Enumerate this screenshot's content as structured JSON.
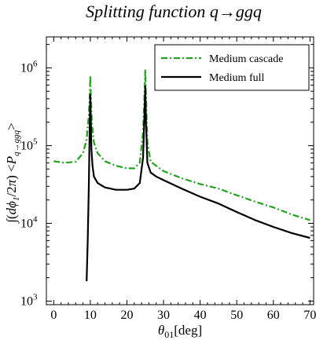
{
  "chart_data": {
    "type": "line",
    "title": "Splitting function q→ggq",
    "xlabel": "θ01[deg]",
    "ylabel": "∫(dϕ1/2π) <Pq→ggq>",
    "xlim": [
      -2,
      71
    ],
    "ylim": [
      900,
      2500000
    ],
    "yscale": "log",
    "x_ticks": [
      0,
      10,
      20,
      30,
      40,
      50,
      60,
      70
    ],
    "x_tick_labels": [
      "0",
      "10",
      "20",
      "30",
      "40",
      "50",
      "60",
      "70"
    ],
    "y_ticks": [
      1000,
      10000,
      100000,
      1000000
    ],
    "y_tick_labels": [
      {
        "base": "10",
        "exp": "3"
      },
      {
        "base": "10",
        "exp": "4"
      },
      {
        "base": "10",
        "exp": "5"
      },
      {
        "base": "10",
        "exp": "6"
      }
    ],
    "grid": false,
    "legend_position": "top-right",
    "series": [
      {
        "name": "Medium cascade",
        "color": "#22a31e",
        "style": "dash-dot",
        "x": [
          0,
          3,
          6,
          8,
          9,
          9.6,
          9.9,
          10,
          10.1,
          10.4,
          11,
          12,
          14,
          17,
          20,
          22,
          23.5,
          24.4,
          24.8,
          25,
          25.2,
          25.6,
          26.5,
          28,
          30,
          35,
          40,
          45,
          50,
          55,
          60,
          65,
          70
        ],
        "y": [
          63000,
          60000,
          62000,
          80000,
          120000,
          250000,
          500000,
          800000,
          500000,
          200000,
          110000,
          80000,
          63000,
          55000,
          51000,
          51000,
          60000,
          150000,
          450000,
          950000,
          450000,
          110000,
          62000,
          55000,
          47000,
          38000,
          32000,
          28000,
          23000,
          19000,
          16000,
          13000,
          11000
        ]
      },
      {
        "name": "Medium full",
        "color": "#000000",
        "style": "solid",
        "x": [
          9.0,
          9.3,
          9.6,
          9.8,
          9.95,
          10.0,
          10.1,
          10.3,
          10.6,
          11,
          12,
          14,
          17,
          20,
          22,
          23.5,
          24.4,
          24.8,
          25,
          25.2,
          25.6,
          26.5,
          28,
          30,
          35,
          40,
          45,
          50,
          55,
          60,
          65,
          70
        ],
        "y": [
          1800,
          6000,
          30000,
          150000,
          350000,
          450000,
          250000,
          90000,
          55000,
          40000,
          33000,
          29000,
          27000,
          27000,
          28000,
          33000,
          70000,
          250000,
          580000,
          200000,
          60000,
          45000,
          40000,
          36000,
          28000,
          22000,
          18000,
          14000,
          11000,
          9000,
          7500,
          6500
        ]
      }
    ]
  }
}
